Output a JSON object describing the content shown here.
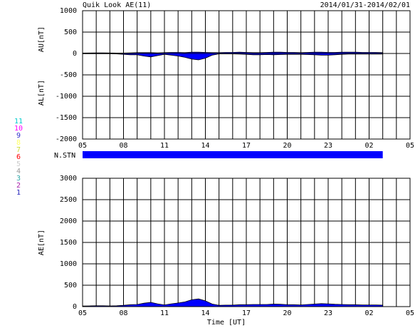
{
  "chart_data": [
    {
      "type": "area",
      "title": "Quik Look AE(11)",
      "subtitle": "2014/01/31-2014/02/01",
      "ylabels": [
        "AU[nT]",
        "AL[nT]"
      ],
      "station_label": "N.STN",
      "station_color": "#0000ff",
      "legend": [
        {
          "label": "11",
          "color": "#00cccc"
        },
        {
          "label": "10",
          "color": "#ff00ff"
        },
        {
          "label": "9",
          "color": "#3333cc"
        },
        {
          "label": "8",
          "color": "#ffff66"
        },
        {
          "label": "7",
          "color": "#ccdd33"
        },
        {
          "label": "6",
          "color": "#ff0000"
        },
        {
          "label": "5",
          "color": "#cccccc"
        },
        {
          "label": "4",
          "color": "#999999"
        },
        {
          "label": "3",
          "color": "#33aaaa"
        },
        {
          "label": "2",
          "color": "#aa22aa"
        },
        {
          "label": "1",
          "color": "#2222bb"
        }
      ],
      "x": [
        5,
        5.5,
        6,
        6.5,
        7,
        7.5,
        8,
        8.5,
        9,
        9.5,
        10,
        10.5,
        11,
        11.5,
        12,
        12.5,
        13,
        13.5,
        14,
        14.5,
        15,
        15.5,
        16,
        16.5,
        17,
        17.5,
        18,
        18.5,
        19,
        19.5,
        20,
        20.5,
        21,
        21.5,
        22,
        22.5,
        23,
        23.5,
        24,
        24.5,
        25,
        25.5,
        26,
        26.5,
        27
      ],
      "xlim": [
        5,
        29
      ],
      "xticks": [
        {
          "value": 5,
          "label": "05"
        },
        {
          "value": 8,
          "label": "08"
        },
        11,
        14,
        17,
        20,
        23,
        {
          "value": 26,
          "label": "02"
        },
        {
          "value": 29,
          "label": "05"
        }
      ],
      "xgrid": [
        5,
        6,
        7,
        8,
        9,
        10,
        11,
        12,
        13,
        14,
        15,
        16,
        17,
        18,
        19,
        20,
        21,
        22,
        23,
        24,
        25,
        26,
        27,
        28,
        29
      ],
      "ylim": [
        -2000,
        1000
      ],
      "yticks": [
        -2000,
        -1500,
        -1000,
        -500,
        0,
        500,
        1000
      ],
      "series": [
        {
          "color": "#0000ff",
          "values": [
            10,
            12,
            15,
            15,
            12,
            10,
            10,
            15,
            20,
            20,
            20,
            15,
            20,
            25,
            25,
            20,
            30,
            30,
            25,
            20,
            20,
            25,
            25,
            30,
            25,
            20,
            20,
            25,
            30,
            30,
            25,
            25,
            20,
            25,
            30,
            30,
            25,
            25,
            30,
            30,
            30,
            25,
            25,
            25,
            20
          ]
        },
        {
          "color": "#0000ff",
          "values": [
            -5,
            -5,
            -5,
            -5,
            -5,
            -10,
            -20,
            -30,
            -30,
            -60,
            -80,
            -50,
            -20,
            -40,
            -60,
            -90,
            -130,
            -150,
            -110,
            -40,
            -10,
            -10,
            -10,
            -15,
            -20,
            -30,
            -30,
            -25,
            -30,
            -25,
            -20,
            -20,
            -20,
            -25,
            -30,
            -40,
            -40,
            -30,
            -20,
            -15,
            -15,
            -15,
            -15,
            -15,
            -15
          ]
        }
      ]
    },
    {
      "type": "area",
      "ylabels": [
        "AE[nT]"
      ],
      "xlabel": "Time [UT]",
      "x": [
        5,
        5.5,
        6,
        6.5,
        7,
        7.5,
        8,
        8.5,
        9,
        9.5,
        10,
        10.5,
        11,
        11.5,
        12,
        12.5,
        13,
        13.5,
        14,
        14.5,
        15,
        15.5,
        16,
        16.5,
        17,
        17.5,
        18,
        18.5,
        19,
        19.5,
        20,
        20.5,
        21,
        21.5,
        22,
        22.5,
        23,
        23.5,
        24,
        24.5,
        25,
        25.5,
        26,
        26.5,
        27
      ],
      "xlim": [
        5,
        29
      ],
      "xticks": [
        {
          "value": 5,
          "label": "05"
        },
        {
          "value": 8,
          "label": "08"
        },
        11,
        14,
        17,
        20,
        23,
        {
          "value": 26,
          "label": "02"
        },
        {
          "value": 29,
          "label": "05"
        }
      ],
      "xgrid": [
        5,
        6,
        7,
        8,
        9,
        10,
        11,
        12,
        13,
        14,
        15,
        16,
        17,
        18,
        19,
        20,
        21,
        22,
        23,
        24,
        25,
        26,
        27,
        28,
        29
      ],
      "ylim": [
        0,
        3000
      ],
      "yticks": [
        0,
        500,
        1000,
        1500,
        2000,
        2500,
        3000
      ],
      "series": [
        {
          "color": "#0000ff",
          "values": [
            15,
            17,
            20,
            20,
            17,
            20,
            30,
            45,
            50,
            80,
            100,
            65,
            40,
            65,
            85,
            110,
            160,
            180,
            135,
            60,
            30,
            35,
            35,
            45,
            45,
            50,
            50,
            50,
            60,
            55,
            45,
            45,
            40,
            50,
            60,
            70,
            65,
            55,
            50,
            45,
            45,
            40,
            40,
            40,
            35
          ]
        }
      ]
    }
  ]
}
